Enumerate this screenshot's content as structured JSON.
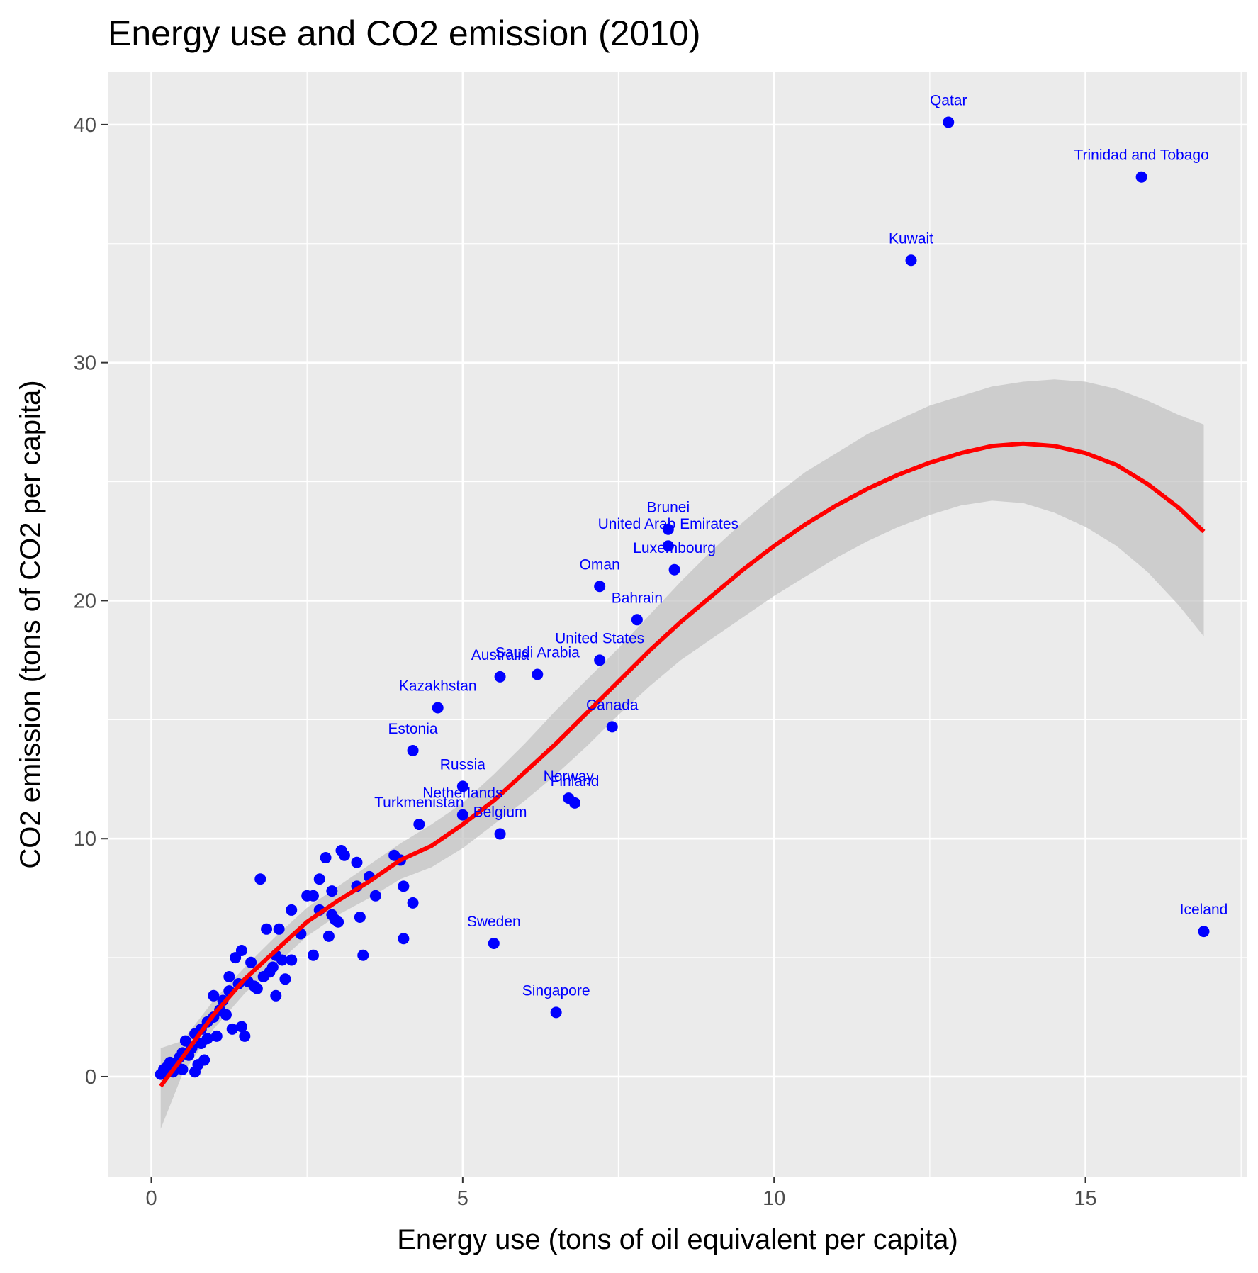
{
  "chart_data": {
    "type": "scatter",
    "title": "Energy use and CO2 emission (2010)",
    "xlabel": "Energy use (tons of oil equivalent per capita)",
    "ylabel": "CO2 emission (tons of CO2 per capita)",
    "xlim": [
      -0.7,
      17.6
    ],
    "ylim": [
      -4.2,
      42.2
    ],
    "x_ticks": [
      0,
      5,
      10,
      15
    ],
    "y_ticks": [
      0,
      10,
      20,
      30,
      40
    ],
    "grid": true,
    "colors": {
      "points": "#0000ff",
      "smooth_line": "#ff0000",
      "confidence_band": "#bdbdbd",
      "panel": "#ebebeb",
      "grid": "#ffffff"
    },
    "labeled_points": [
      {
        "label": "Qatar",
        "x": 12.8,
        "y": 40.1
      },
      {
        "label": "Trinidad and Tobago",
        "x": 15.9,
        "y": 37.8
      },
      {
        "label": "Kuwait",
        "x": 12.2,
        "y": 34.3
      },
      {
        "label": "Brunei",
        "x": 8.3,
        "y": 23.0
      },
      {
        "label": "United Arab Emirates",
        "x": 8.3,
        "y": 22.3
      },
      {
        "label": "Luxembourg",
        "x": 8.4,
        "y": 21.3
      },
      {
        "label": "Oman",
        "x": 7.2,
        "y": 20.6
      },
      {
        "label": "Bahrain",
        "x": 7.8,
        "y": 19.2
      },
      {
        "label": "United States",
        "x": 7.2,
        "y": 17.5
      },
      {
        "label": "Saudi Arabia",
        "x": 6.2,
        "y": 16.9
      },
      {
        "label": "Australia",
        "x": 5.6,
        "y": 16.8
      },
      {
        "label": "Kazakhstan",
        "x": 4.6,
        "y": 15.5
      },
      {
        "label": "Canada",
        "x": 7.4,
        "y": 14.7
      },
      {
        "label": "Estonia",
        "x": 4.2,
        "y": 13.7
      },
      {
        "label": "Russia",
        "x": 5.0,
        "y": 12.2
      },
      {
        "label": "Norway",
        "x": 6.7,
        "y": 11.7
      },
      {
        "label": "Finland",
        "x": 6.8,
        "y": 11.5
      },
      {
        "label": "Netherlands",
        "x": 5.0,
        "y": 11.0
      },
      {
        "label": "Turkmenistan",
        "x": 4.3,
        "y": 10.6
      },
      {
        "label": "Belgium",
        "x": 5.6,
        "y": 10.2
      },
      {
        "label": "Sweden",
        "x": 5.5,
        "y": 5.6
      },
      {
        "label": "Singapore",
        "x": 6.5,
        "y": 2.7
      },
      {
        "label": "Iceland",
        "x": 16.9,
        "y": 6.1
      }
    ],
    "points": [
      [
        0.15,
        0.1
      ],
      [
        0.2,
        0.3
      ],
      [
        0.25,
        0.4
      ],
      [
        0.3,
        0.6
      ],
      [
        0.35,
        0.2
      ],
      [
        0.4,
        0.5
      ],
      [
        0.45,
        0.8
      ],
      [
        0.5,
        0.3
      ],
      [
        0.5,
        1.0
      ],
      [
        0.55,
        1.5
      ],
      [
        0.6,
        0.9
      ],
      [
        0.65,
        1.2
      ],
      [
        0.7,
        0.2
      ],
      [
        0.7,
        1.8
      ],
      [
        0.75,
        0.5
      ],
      [
        0.8,
        1.4
      ],
      [
        0.8,
        2.0
      ],
      [
        0.85,
        0.7
      ],
      [
        0.9,
        1.6
      ],
      [
        0.9,
        2.3
      ],
      [
        1.0,
        2.5
      ],
      [
        1.0,
        3.4
      ],
      [
        1.05,
        1.7
      ],
      [
        1.1,
        2.8
      ],
      [
        1.15,
        3.2
      ],
      [
        1.2,
        2.6
      ],
      [
        1.25,
        3.6
      ],
      [
        1.25,
        4.2
      ],
      [
        1.3,
        2.0
      ],
      [
        1.35,
        5.0
      ],
      [
        1.4,
        3.9
      ],
      [
        1.45,
        2.1
      ],
      [
        1.45,
        5.3
      ],
      [
        1.5,
        1.7
      ],
      [
        1.55,
        4.0
      ],
      [
        1.6,
        4.8
      ],
      [
        1.65,
        3.8
      ],
      [
        1.7,
        3.7
      ],
      [
        1.75,
        8.3
      ],
      [
        1.8,
        4.2
      ],
      [
        1.85,
        6.2
      ],
      [
        1.9,
        4.4
      ],
      [
        1.95,
        4.6
      ],
      [
        2.0,
        5.1
      ],
      [
        2.0,
        3.4
      ],
      [
        2.05,
        6.2
      ],
      [
        2.1,
        4.9
      ],
      [
        2.15,
        4.1
      ],
      [
        2.25,
        7.0
      ],
      [
        2.25,
        4.9
      ],
      [
        2.4,
        6.0
      ],
      [
        2.5,
        7.6
      ],
      [
        2.6,
        7.6
      ],
      [
        2.6,
        5.1
      ],
      [
        2.7,
        8.3
      ],
      [
        2.7,
        7.0
      ],
      [
        2.8,
        9.2
      ],
      [
        2.85,
        5.9
      ],
      [
        2.9,
        7.8
      ],
      [
        2.9,
        6.8
      ],
      [
        2.95,
        6.6
      ],
      [
        3.0,
        6.5
      ],
      [
        3.05,
        9.5
      ],
      [
        3.1,
        9.3
      ],
      [
        3.3,
        9.0
      ],
      [
        3.3,
        8.0
      ],
      [
        3.35,
        6.7
      ],
      [
        3.4,
        5.1
      ],
      [
        3.5,
        8.4
      ],
      [
        3.6,
        7.6
      ],
      [
        3.9,
        9.3
      ],
      [
        4.0,
        9.1
      ],
      [
        4.05,
        8.0
      ],
      [
        4.05,
        5.8
      ],
      [
        4.2,
        7.3
      ]
    ],
    "smooth_fit": [
      [
        0.15,
        -0.4
      ],
      [
        0.5,
        0.8
      ],
      [
        1.0,
        2.6
      ],
      [
        1.5,
        4.1
      ],
      [
        2.0,
        5.3
      ],
      [
        2.5,
        6.5
      ],
      [
        3.0,
        7.4
      ],
      [
        3.5,
        8.2
      ],
      [
        4.0,
        9.1
      ],
      [
        4.5,
        9.7
      ],
      [
        5.0,
        10.6
      ],
      [
        5.5,
        11.6
      ],
      [
        6.0,
        12.8
      ],
      [
        6.5,
        14.0
      ],
      [
        7.0,
        15.3
      ],
      [
        7.5,
        16.6
      ],
      [
        8.0,
        17.9
      ],
      [
        8.5,
        19.1
      ],
      [
        9.0,
        20.2
      ],
      [
        9.5,
        21.3
      ],
      [
        10.0,
        22.3
      ],
      [
        10.5,
        23.2
      ],
      [
        11.0,
        24.0
      ],
      [
        11.5,
        24.7
      ],
      [
        12.0,
        25.3
      ],
      [
        12.5,
        25.8
      ],
      [
        13.0,
        26.2
      ],
      [
        13.5,
        26.5
      ],
      [
        14.0,
        26.6
      ],
      [
        14.5,
        26.5
      ],
      [
        15.0,
        26.2
      ],
      [
        15.5,
        25.7
      ],
      [
        16.0,
        24.9
      ],
      [
        16.5,
        23.9
      ],
      [
        16.9,
        22.9
      ]
    ],
    "smooth_upper": [
      [
        0.15,
        1.2
      ],
      [
        0.5,
        1.5
      ],
      [
        1.0,
        3.2
      ],
      [
        1.5,
        4.6
      ],
      [
        2.0,
        5.9
      ],
      [
        2.5,
        7.1
      ],
      [
        3.0,
        8.0
      ],
      [
        3.5,
        8.9
      ],
      [
        4.0,
        9.8
      ],
      [
        4.5,
        10.6
      ],
      [
        5.0,
        11.5
      ],
      [
        5.5,
        12.7
      ],
      [
        6.0,
        14.0
      ],
      [
        6.5,
        15.4
      ],
      [
        7.0,
        16.7
      ],
      [
        7.5,
        18.0
      ],
      [
        8.0,
        19.4
      ],
      [
        8.5,
        20.8
      ],
      [
        9.0,
        22.1
      ],
      [
        9.5,
        23.3
      ],
      [
        10.0,
        24.4
      ],
      [
        10.5,
        25.4
      ],
      [
        11.0,
        26.2
      ],
      [
        11.5,
        27.0
      ],
      [
        12.0,
        27.6
      ],
      [
        12.5,
        28.2
      ],
      [
        13.0,
        28.6
      ],
      [
        13.5,
        29.0
      ],
      [
        14.0,
        29.2
      ],
      [
        14.5,
        29.3
      ],
      [
        15.0,
        29.2
      ],
      [
        15.5,
        28.9
      ],
      [
        16.0,
        28.4
      ],
      [
        16.5,
        27.8
      ],
      [
        16.9,
        27.4
      ]
    ],
    "smooth_lower": [
      [
        0.15,
        -2.2
      ],
      [
        0.5,
        0.1
      ],
      [
        1.0,
        2.0
      ],
      [
        1.5,
        3.5
      ],
      [
        2.0,
        4.7
      ],
      [
        2.5,
        5.9
      ],
      [
        3.0,
        6.8
      ],
      [
        3.5,
        7.5
      ],
      [
        4.0,
        8.3
      ],
      [
        4.5,
        8.8
      ],
      [
        5.0,
        9.6
      ],
      [
        5.5,
        10.6
      ],
      [
        6.0,
        11.6
      ],
      [
        6.5,
        12.7
      ],
      [
        7.0,
        13.9
      ],
      [
        7.5,
        15.2
      ],
      [
        8.0,
        16.4
      ],
      [
        8.5,
        17.5
      ],
      [
        9.0,
        18.4
      ],
      [
        9.5,
        19.3
      ],
      [
        10.0,
        20.2
      ],
      [
        10.5,
        21.0
      ],
      [
        11.0,
        21.8
      ],
      [
        11.5,
        22.5
      ],
      [
        12.0,
        23.1
      ],
      [
        12.5,
        23.6
      ],
      [
        13.0,
        24.0
      ],
      [
        13.5,
        24.2
      ],
      [
        14.0,
        24.1
      ],
      [
        14.5,
        23.7
      ],
      [
        15.0,
        23.1
      ],
      [
        15.5,
        22.3
      ],
      [
        16.0,
        21.2
      ],
      [
        16.5,
        19.8
      ],
      [
        16.9,
        18.5
      ]
    ]
  }
}
